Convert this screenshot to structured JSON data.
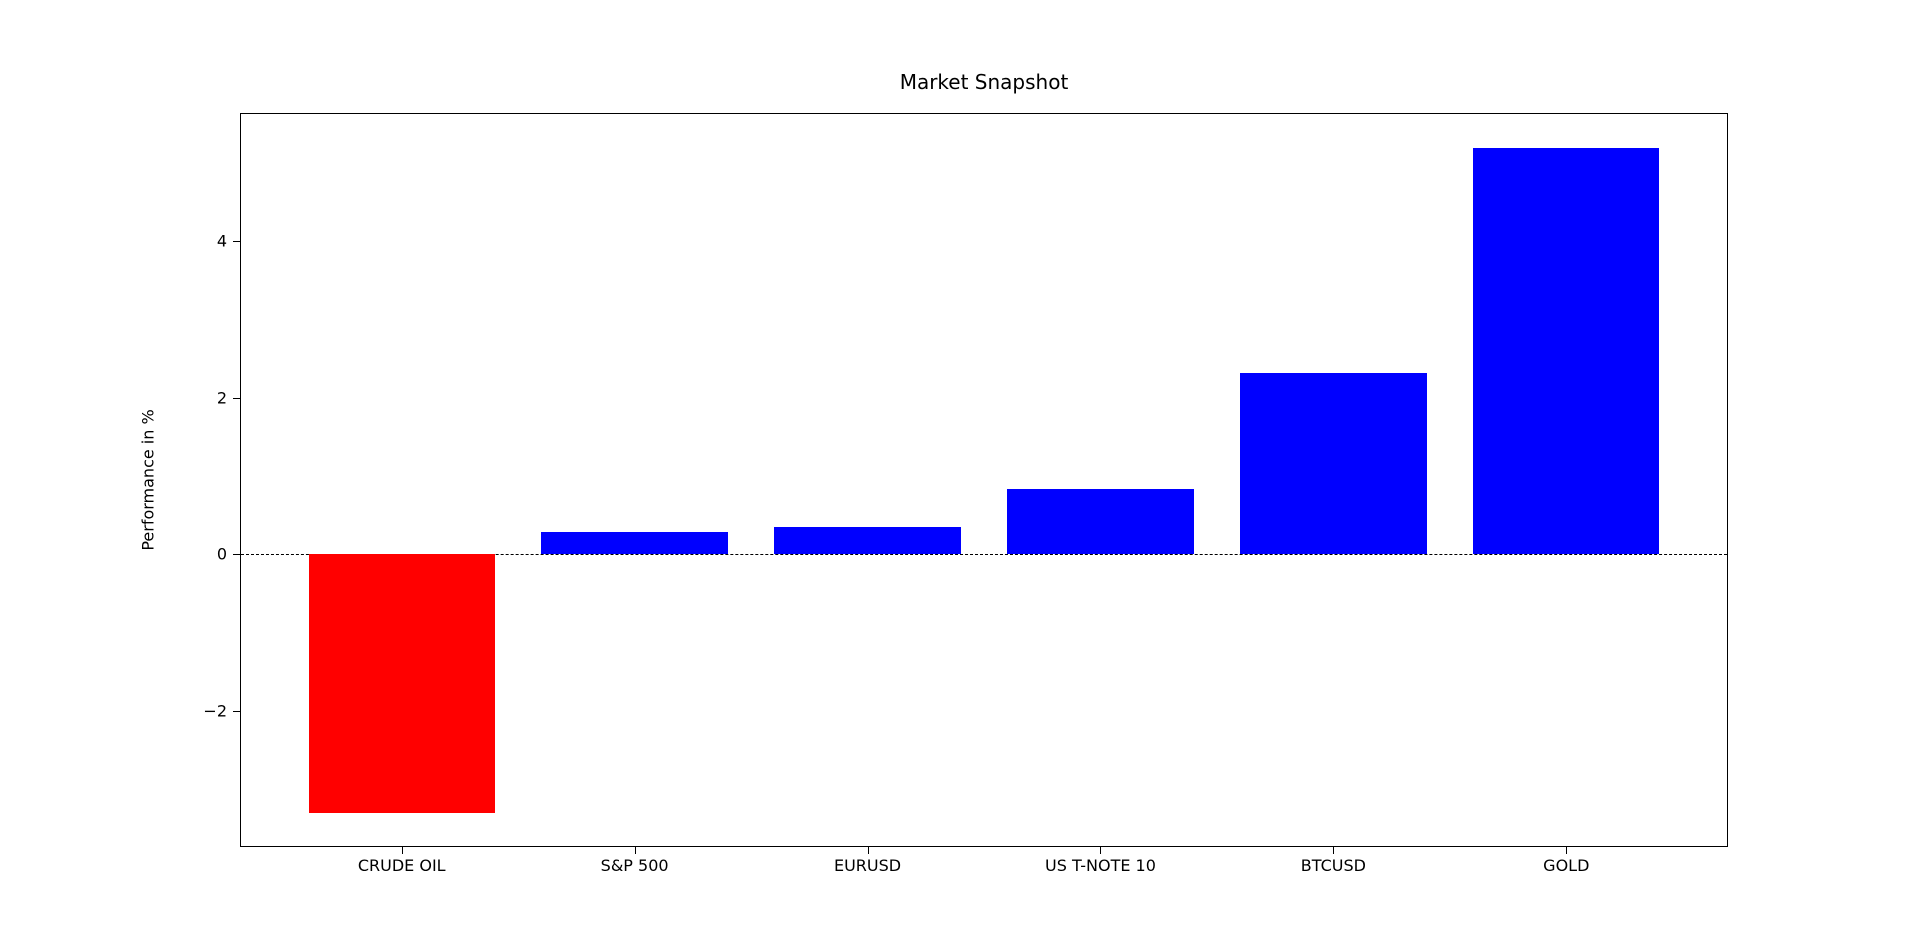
{
  "figure": {
    "background": "#ffffff"
  },
  "chart_data": {
    "type": "bar",
    "title": "Market Snapshot",
    "categories": [
      "CRUDE OIL",
      "S&P 500",
      "EURUSD",
      "US T-NOTE 10",
      "BTCUSD",
      "GOLD"
    ],
    "values": [
      -3.3,
      0.29,
      0.35,
      0.84,
      2.32,
      5.19
    ],
    "bar_colors": [
      "#ff0000",
      "#0000ff",
      "#0000ff",
      "#0000ff",
      "#0000ff",
      "#0000ff"
    ],
    "positive_color": "#0000ff",
    "negative_color": "#ff0000",
    "xlabel": "",
    "ylabel": "Performance in %",
    "ylim": [
      -3.725,
      5.625
    ],
    "xlim": [
      -0.69,
      5.69
    ],
    "yticks": [
      -2,
      0,
      2,
      4
    ],
    "ytick_labels": [
      "−2",
      "0",
      "2",
      "4"
    ],
    "bar_width": 0.8,
    "zero_line": {
      "style": "dashed",
      "color": "#000000",
      "value": 0
    },
    "grid": false,
    "legend": null
  }
}
